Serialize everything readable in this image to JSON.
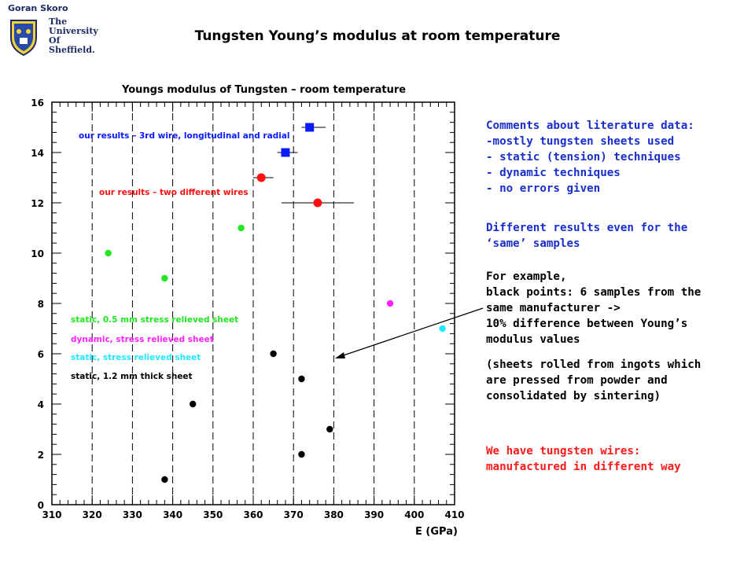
{
  "header": {
    "author": "Goran Skoro",
    "university_lines": [
      "The",
      "University",
      "Of",
      "Sheffield."
    ]
  },
  "slide_title": "Tungsten Young’s modulus at room temperature",
  "colors": {
    "green": "#22e622",
    "magenta": "#ff22ff",
    "cyan": "#22e8ff",
    "black": "#000000",
    "red": "#ff1010",
    "blue": "#0a1aff",
    "comment_blue": "#1a2fc9",
    "comment_red": "#ff1a1a"
  },
  "chart_data": {
    "type": "scatter",
    "title": "Youngs modulus of Tungsten – room temperature",
    "xlabel": "E (GPa)",
    "ylabel": "",
    "xlim": [
      310,
      410
    ],
    "ylim": [
      0,
      16
    ],
    "xticks": [
      310,
      320,
      330,
      340,
      350,
      360,
      370,
      380,
      390,
      400,
      410
    ],
    "yticks": [
      0,
      2,
      4,
      6,
      8,
      10,
      12,
      14,
      16
    ],
    "grid_x": [
      320,
      330,
      340,
      350,
      360,
      370,
      380,
      390,
      400
    ],
    "series": [
      {
        "name": "static, 0.5 mm stress relieved sheet",
        "color": "#22e622",
        "marker": "circle",
        "points": [
          [
            324,
            10
          ],
          [
            338,
            9
          ],
          [
            357,
            11
          ]
        ]
      },
      {
        "name": "dynamic, stress relieved sheet",
        "color": "#ff22ff",
        "marker": "circle",
        "points": [
          [
            394,
            8
          ]
        ]
      },
      {
        "name": "static, stress relieved sheet",
        "color": "#22e8ff",
        "marker": "circle",
        "points": [
          [
            407,
            7
          ]
        ]
      },
      {
        "name": "static, 1.2 mm thick sheet",
        "color": "#000000",
        "marker": "circle",
        "points": [
          [
            338,
            1
          ],
          [
            345,
            4
          ],
          [
            365,
            6
          ],
          [
            372,
            5
          ],
          [
            379,
            3
          ],
          [
            372,
            2
          ]
        ]
      },
      {
        "name": "our results – two different wires",
        "color": "#ff1010",
        "marker": "circle",
        "points": [
          [
            362,
            13,
            360,
            365
          ],
          [
            376,
            12,
            367,
            385
          ]
        ]
      },
      {
        "name": "our results – 3rd wire, longitudinal and radial",
        "color": "#0a1aff",
        "marker": "square",
        "points": [
          [
            374,
            15,
            372,
            378
          ],
          [
            368,
            14,
            366,
            371
          ]
        ]
      }
    ],
    "annotations": [
      {
        "text": "our results – 3rd wire, longitudinal and radial",
        "color": "#0a1aff"
      },
      {
        "text": "our results – two different wires",
        "color": "#ff1010"
      },
      {
        "text": "static, 0.5 mm stress relieved sheet",
        "color": "#22e622"
      },
      {
        "text": "dynamic, stress relieved sheet",
        "color": "#ff22ff"
      },
      {
        "text": "static, stress relieved sheet",
        "color": "#22e8ff"
      },
      {
        "text": "static, 1.2 mm thick sheet",
        "color": "#000000"
      }
    ]
  },
  "comments": {
    "literature": [
      "Comments about literature data:",
      "-mostly tungsten sheets used",
      "- static (tension) techniques",
      "- dynamic techniques",
      "- no errors given"
    ],
    "different_results": [
      "Different results even for the",
      "‘same’ samples"
    ],
    "example": [
      "For example,",
      "black points: 6 samples from the",
      "same manufacturer ->",
      "10% difference between Young’s",
      "modulus values"
    ],
    "sheets_note": [
      "(sheets rolled from ingots which",
      "are pressed from powder and",
      "consolidated by sintering)"
    ],
    "wires": [
      "We have tungsten wires:",
      "manufactured in different way"
    ]
  }
}
